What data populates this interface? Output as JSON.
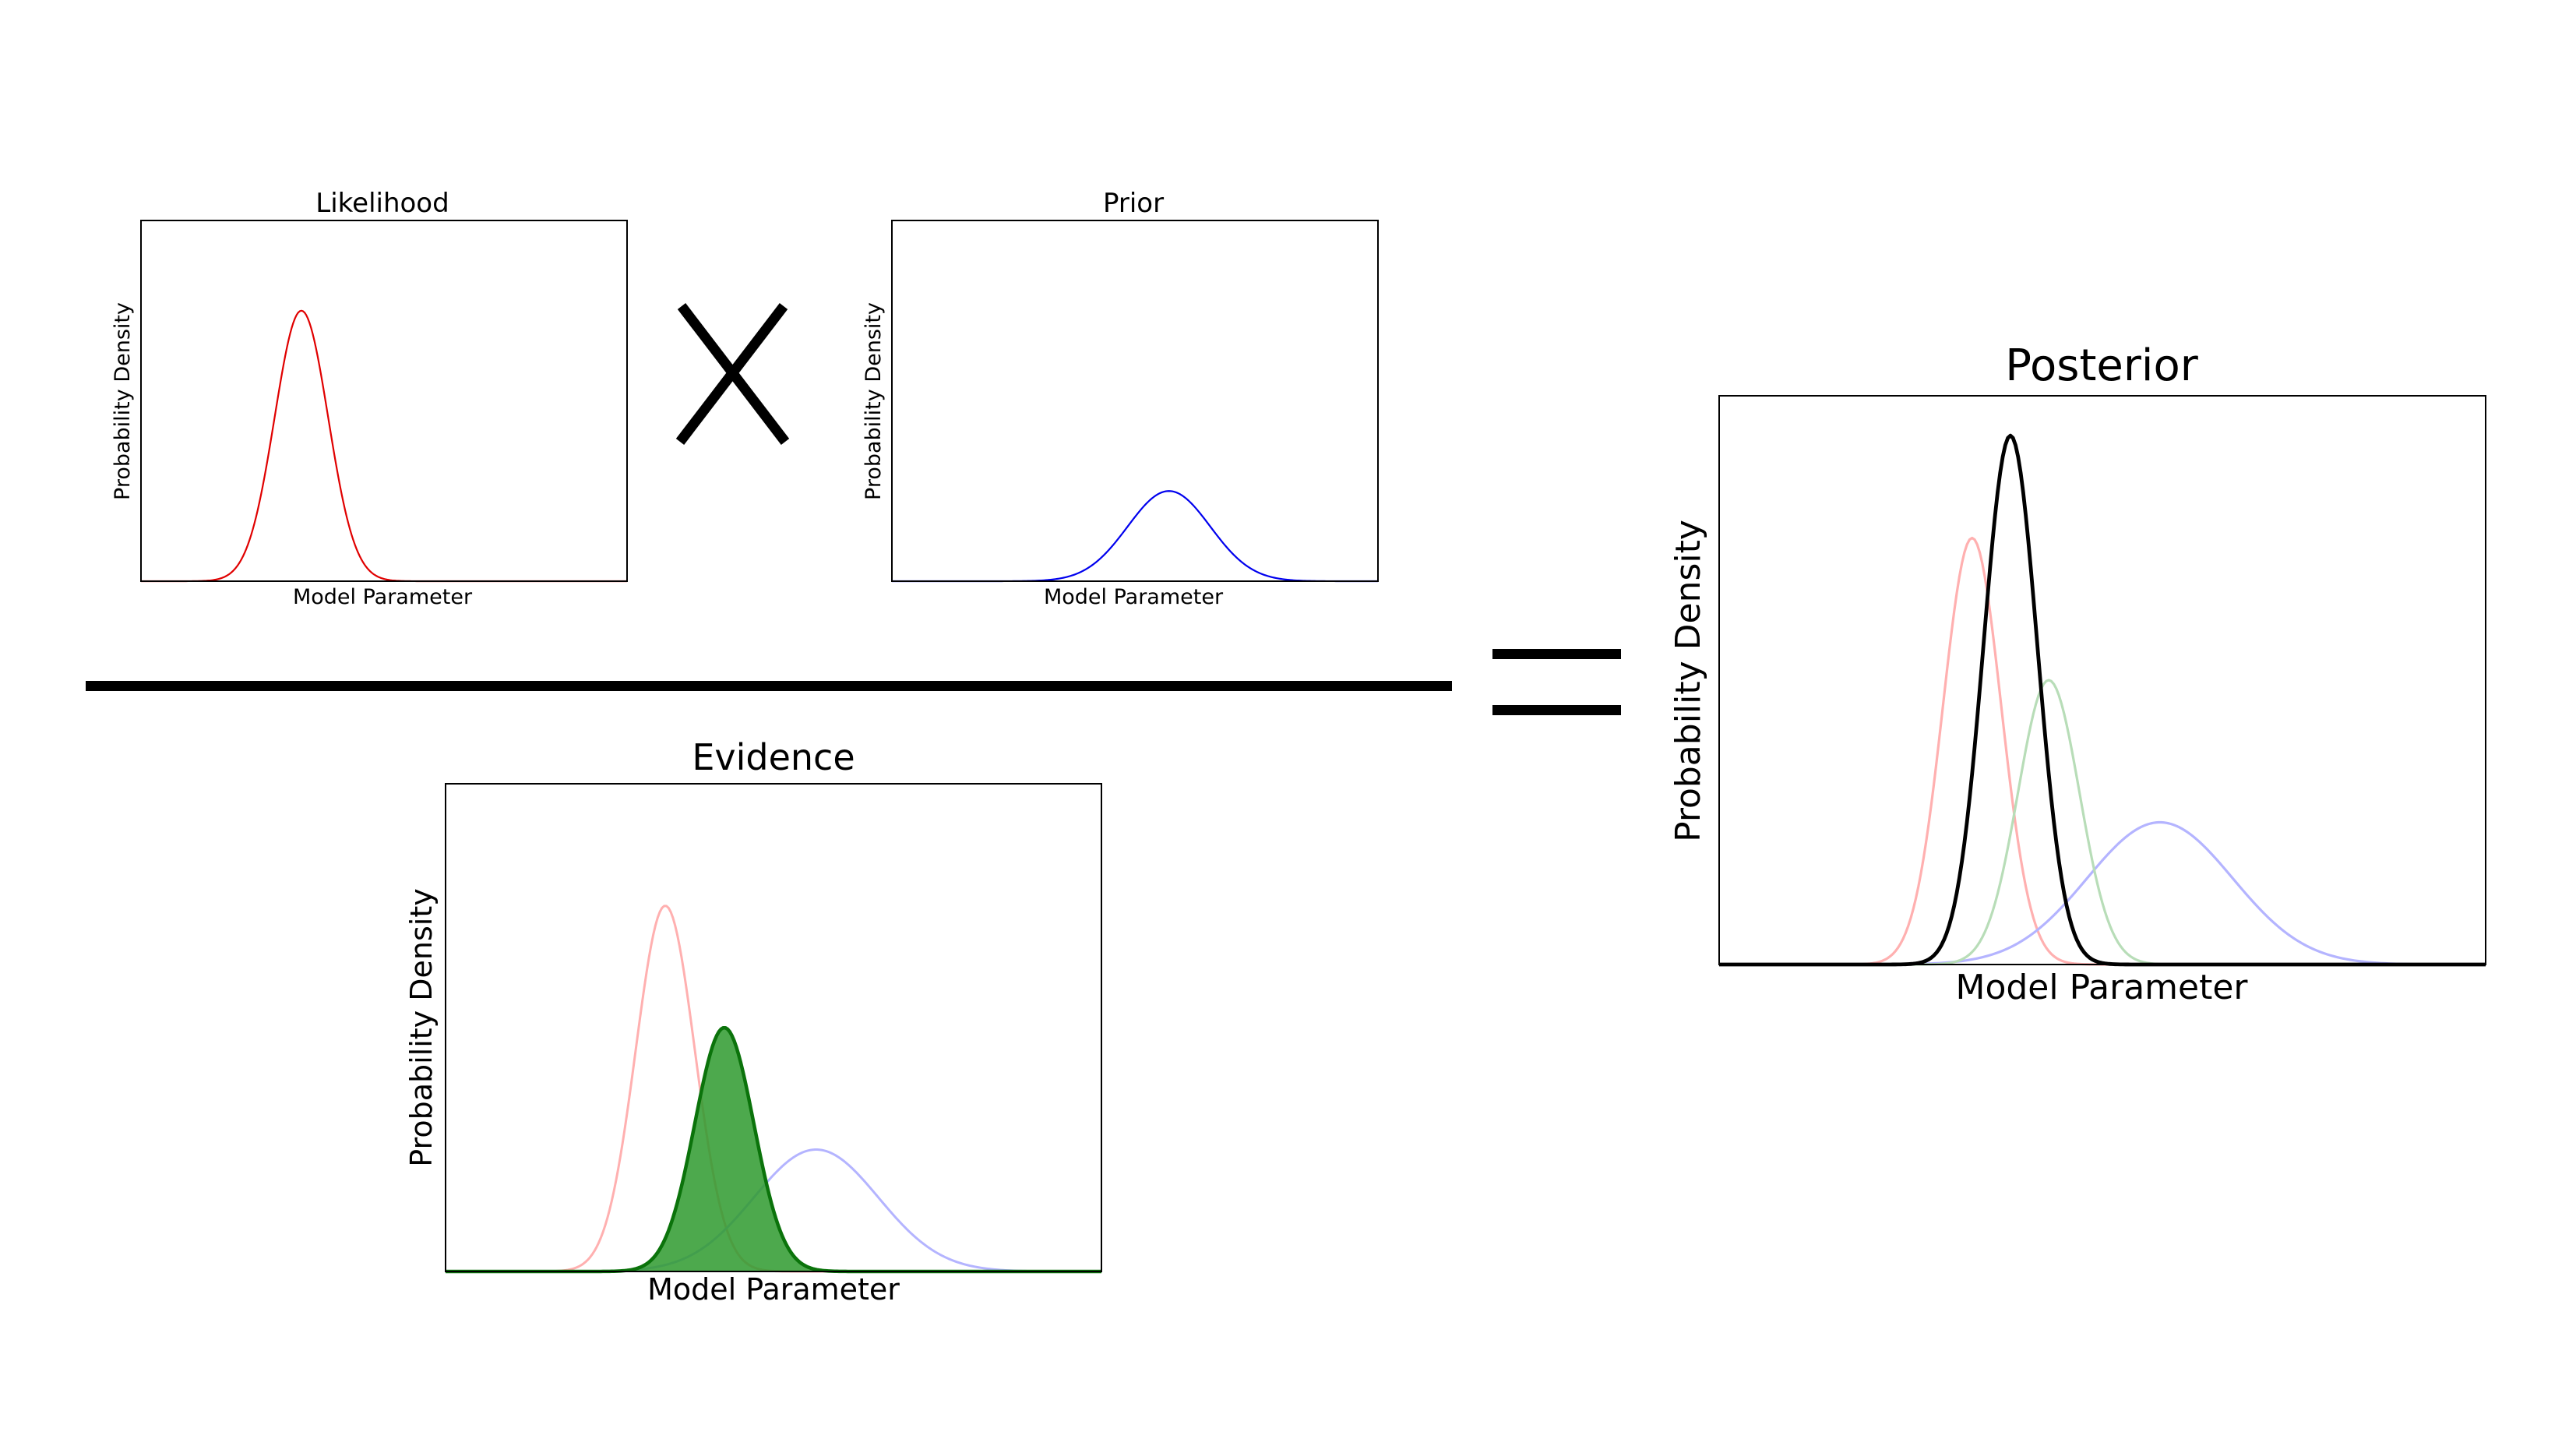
{
  "colors": {
    "likelihood": "#e00000",
    "prior": "#0000ee",
    "evidence_fill": "#2e9a2e",
    "evidence_stroke": "#0b730b",
    "posterior": "#000000",
    "faded_red": "#ffb0b0",
    "faded_blue": "#b4b4ff",
    "faded_green": "#b8ddb8"
  },
  "operators": {
    "times": "X",
    "equals": "=",
    "fraction_bar": "divide-line"
  },
  "chart_data": [
    {
      "id": "likelihood",
      "type": "line",
      "title": "Likelihood",
      "xlabel": "Model Parameter",
      "ylabel": "Probability Density",
      "xlim": [
        0,
        10
      ],
      "ylim": [
        0,
        1
      ],
      "ticks": "none",
      "grid": false,
      "series": [
        {
          "curve": "gaussian",
          "mu": 3.3,
          "sigma": 0.55,
          "peak": 0.75,
          "color": "likelihood",
          "fill": false
        }
      ]
    },
    {
      "id": "prior",
      "type": "line",
      "title": "Prior",
      "xlabel": "Model Parameter",
      "ylabel": "Probability Density",
      "xlim": [
        0,
        10
      ],
      "ylim": [
        0,
        1
      ],
      "ticks": "none",
      "grid": false,
      "series": [
        {
          "curve": "gaussian",
          "mu": 5.7,
          "sigma": 0.85,
          "peak": 0.25,
          "color": "prior",
          "fill": false
        }
      ]
    },
    {
      "id": "evidence",
      "type": "area",
      "title": "Evidence",
      "xlabel": "Model Parameter",
      "ylabel": "Probability Density",
      "xlim": [
        0,
        10
      ],
      "ylim": [
        0,
        1
      ],
      "ticks": "none",
      "grid": false,
      "series": [
        {
          "curve": "gaussian",
          "mu": 3.35,
          "sigma": 0.45,
          "peak": 0.75,
          "color": "faded_red",
          "fill": false
        },
        {
          "curve": "gaussian",
          "mu": 5.65,
          "sigma": 0.95,
          "peak": 0.25,
          "color": "faded_blue",
          "fill": false
        },
        {
          "curve": "gaussian",
          "mu": 4.25,
          "sigma": 0.45,
          "peak": 0.5,
          "color": "evidence_stroke",
          "fill": true,
          "fill_color": "evidence_fill"
        }
      ]
    },
    {
      "id": "posterior",
      "type": "line",
      "title": "Posterior",
      "xlabel": "Model Parameter",
      "ylabel": "Probability Density",
      "xlim": [
        0,
        10
      ],
      "ylim": [
        0,
        1
      ],
      "ticks": "none",
      "grid": false,
      "series": [
        {
          "curve": "gaussian",
          "mu": 3.3,
          "sigma": 0.38,
          "peak": 0.75,
          "color": "faded_red",
          "fill": false
        },
        {
          "curve": "gaussian",
          "mu": 5.75,
          "sigma": 0.95,
          "peak": 0.25,
          "color": "faded_blue",
          "fill": false
        },
        {
          "curve": "gaussian",
          "mu": 4.3,
          "sigma": 0.4,
          "peak": 0.5,
          "color": "faded_green",
          "fill": false
        },
        {
          "curve": "gaussian",
          "mu": 3.8,
          "sigma": 0.35,
          "peak": 0.93,
          "color": "posterior",
          "fill": false
        }
      ]
    }
  ]
}
